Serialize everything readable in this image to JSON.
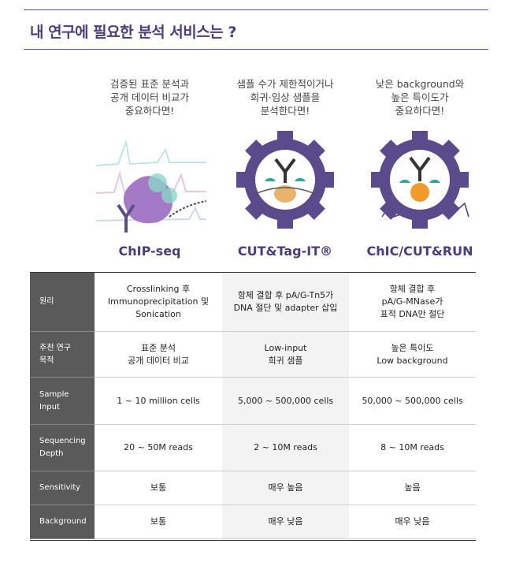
{
  "header": {
    "title": "내 연구에 필요한 분석 서비스는 ?"
  },
  "services": [
    {
      "description": "검증된 표준 분석과\n공개 데이터 비교가\n중요하다면!",
      "name": "ChIP-seq"
    },
    {
      "description": "샘플 수가 제한적이거나\n희귀·임상 샘플을\n분석한다면!",
      "name": "CUT&Tag-IT®"
    },
    {
      "description": "낮은 background와\n높은 특이도가\n중요하다면!",
      "name": "ChIC/CUT&RUN"
    }
  ],
  "table": {
    "row_headers": [
      "원리",
      "추천 연구\n목적",
      "Sample\nInput",
      "Sequencing\nDepth",
      "Sensitivity",
      "Background"
    ],
    "rows": [
      [
        "Crosslinking 후\nImmunoprecipitation 및\nSonication",
        "항체 결합 후 pA/G-Tn5가\nDNA 절단 및 adapter 삽입",
        "항체 결합 후\npA/G-MNase가\n표적 DNA만 절단"
      ],
      [
        "표준 분석\n공개 데이터 비교",
        "Low-input\n희귀 샘플",
        "높은 특이도\nLow background"
      ],
      [
        "1 ~ 10 million cells",
        "5,000 ~ 500,000 cells",
        "50,000 ~ 500,000 cells"
      ],
      [
        "20 ~ 50M reads",
        "2 ~ 10M reads",
        "8 ~ 10M reads"
      ],
      [
        "보통",
        "매우 높음",
        "높음"
      ],
      [
        "보통",
        "매우 낮음",
        "매우 낮음"
      ]
    ]
  }
}
